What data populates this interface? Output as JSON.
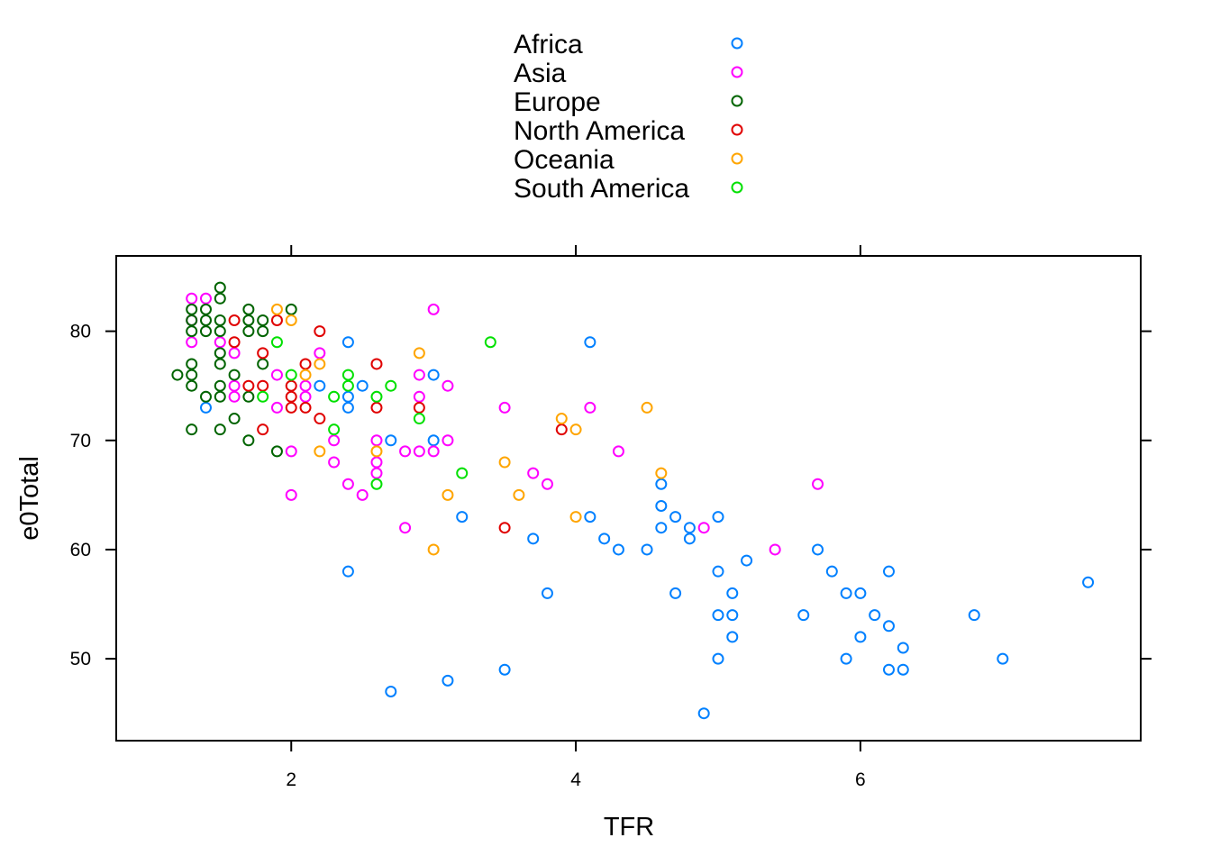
{
  "chart_data": {
    "type": "scatter",
    "xlabel": "TFR",
    "ylabel": "e0Total",
    "xlim": [
      0.77,
      7.97
    ],
    "ylim": [
      42.5,
      86.9
    ],
    "xticks": [
      2,
      4,
      6
    ],
    "yticks": [
      50,
      60,
      70,
      80
    ],
    "legend_position": "top",
    "series": [
      {
        "name": "Africa",
        "color": "#0080ff",
        "points": [
          [
            1.4,
            73
          ],
          [
            2.2,
            75
          ],
          [
            2.4,
            79
          ],
          [
            2.4,
            74
          ],
          [
            2.4,
            73
          ],
          [
            2.5,
            75
          ],
          [
            2.4,
            58
          ],
          [
            2.7,
            70
          ],
          [
            2.7,
            47
          ],
          [
            3.0,
            76
          ],
          [
            3.0,
            70
          ],
          [
            3.1,
            48
          ],
          [
            3.2,
            63
          ],
          [
            3.5,
            49
          ],
          [
            3.7,
            61
          ],
          [
            3.8,
            56
          ],
          [
            4.1,
            79
          ],
          [
            4.1,
            63
          ],
          [
            4.2,
            61
          ],
          [
            4.3,
            60
          ],
          [
            4.5,
            60
          ],
          [
            4.6,
            66
          ],
          [
            4.6,
            64
          ],
          [
            4.6,
            62
          ],
          [
            4.7,
            63
          ],
          [
            4.7,
            56
          ],
          [
            4.8,
            62
          ],
          [
            4.8,
            61
          ],
          [
            4.9,
            45
          ],
          [
            5.0,
            63
          ],
          [
            5.0,
            58
          ],
          [
            5.0,
            54
          ],
          [
            5.0,
            50
          ],
          [
            5.1,
            56
          ],
          [
            5.1,
            54
          ],
          [
            5.1,
            52
          ],
          [
            5.2,
            59
          ],
          [
            5.6,
            54
          ],
          [
            5.7,
            60
          ],
          [
            5.8,
            58
          ],
          [
            5.9,
            56
          ],
          [
            5.9,
            50
          ],
          [
            6.0,
            56
          ],
          [
            6.0,
            52
          ],
          [
            6.1,
            54
          ],
          [
            6.2,
            58
          ],
          [
            6.2,
            53
          ],
          [
            6.2,
            49
          ],
          [
            6.3,
            51
          ],
          [
            6.3,
            49
          ],
          [
            6.8,
            54
          ],
          [
            7.0,
            50
          ],
          [
            7.6,
            57
          ]
        ]
      },
      {
        "name": "Asia",
        "color": "#ff00ff",
        "points": [
          [
            1.3,
            83
          ],
          [
            1.3,
            81
          ],
          [
            1.3,
            79
          ],
          [
            1.4,
            83
          ],
          [
            1.5,
            79
          ],
          [
            1.6,
            78
          ],
          [
            1.6,
            75
          ],
          [
            1.6,
            74
          ],
          [
            1.9,
            76
          ],
          [
            1.9,
            73
          ],
          [
            2.0,
            69
          ],
          [
            2.0,
            65
          ],
          [
            2.1,
            75
          ],
          [
            2.1,
            74
          ],
          [
            2.2,
            78
          ],
          [
            2.3,
            70
          ],
          [
            2.3,
            68
          ],
          [
            2.4,
            66
          ],
          [
            2.5,
            65
          ],
          [
            2.6,
            70
          ],
          [
            2.6,
            68
          ],
          [
            2.6,
            67
          ],
          [
            2.8,
            69
          ],
          [
            2.8,
            62
          ],
          [
            2.9,
            76
          ],
          [
            2.9,
            74
          ],
          [
            2.9,
            69
          ],
          [
            3.0,
            82
          ],
          [
            3.0,
            69
          ],
          [
            3.1,
            75
          ],
          [
            3.1,
            70
          ],
          [
            3.5,
            73
          ],
          [
            3.7,
            67
          ],
          [
            3.8,
            66
          ],
          [
            4.1,
            73
          ],
          [
            4.3,
            69
          ],
          [
            4.9,
            62
          ],
          [
            5.4,
            60
          ],
          [
            5.7,
            66
          ]
        ]
      },
      {
        "name": "Europe",
        "color": "#006400",
        "points": [
          [
            1.2,
            76
          ],
          [
            1.3,
            82
          ],
          [
            1.3,
            81
          ],
          [
            1.3,
            80
          ],
          [
            1.3,
            77
          ],
          [
            1.3,
            76
          ],
          [
            1.3,
            75
          ],
          [
            1.3,
            71
          ],
          [
            1.4,
            82
          ],
          [
            1.4,
            81
          ],
          [
            1.4,
            80
          ],
          [
            1.4,
            74
          ],
          [
            1.5,
            84
          ],
          [
            1.5,
            83
          ],
          [
            1.5,
            81
          ],
          [
            1.5,
            80
          ],
          [
            1.5,
            78
          ],
          [
            1.5,
            77
          ],
          [
            1.5,
            75
          ],
          [
            1.5,
            74
          ],
          [
            1.5,
            71
          ],
          [
            1.6,
            76
          ],
          [
            1.6,
            72
          ],
          [
            1.7,
            82
          ],
          [
            1.7,
            81
          ],
          [
            1.7,
            80
          ],
          [
            1.7,
            74
          ],
          [
            1.7,
            70
          ],
          [
            1.8,
            81
          ],
          [
            1.8,
            80
          ],
          [
            1.8,
            77
          ],
          [
            1.9,
            69
          ],
          [
            2.0,
            82
          ]
        ]
      },
      {
        "name": "North America",
        "color": "#e00000",
        "points": [
          [
            1.6,
            81
          ],
          [
            1.6,
            79
          ],
          [
            1.7,
            75
          ],
          [
            1.8,
            78
          ],
          [
            1.8,
            75
          ],
          [
            1.8,
            71
          ],
          [
            1.9,
            81
          ],
          [
            2.0,
            75
          ],
          [
            2.0,
            74
          ],
          [
            2.0,
            73
          ],
          [
            2.1,
            77
          ],
          [
            2.1,
            73
          ],
          [
            2.2,
            80
          ],
          [
            2.2,
            72
          ],
          [
            2.6,
            77
          ],
          [
            2.6,
            73
          ],
          [
            2.9,
            73
          ],
          [
            3.5,
            62
          ],
          [
            3.9,
            71
          ]
        ]
      },
      {
        "name": "Oceania",
        "color": "#ffa500",
        "points": [
          [
            1.9,
            82
          ],
          [
            2.0,
            81
          ],
          [
            2.1,
            76
          ],
          [
            2.2,
            77
          ],
          [
            2.2,
            69
          ],
          [
            2.6,
            69
          ],
          [
            2.9,
            78
          ],
          [
            3.0,
            60
          ],
          [
            3.1,
            65
          ],
          [
            3.5,
            68
          ],
          [
            3.6,
            65
          ],
          [
            3.9,
            72
          ],
          [
            4.0,
            71
          ],
          [
            4.0,
            63
          ],
          [
            4.5,
            73
          ],
          [
            4.6,
            67
          ]
        ]
      },
      {
        "name": "South America",
        "color": "#00e000",
        "points": [
          [
            1.8,
            74
          ],
          [
            1.9,
            79
          ],
          [
            2.0,
            76
          ],
          [
            2.3,
            74
          ],
          [
            2.3,
            71
          ],
          [
            2.4,
            76
          ],
          [
            2.4,
            75
          ],
          [
            2.6,
            74
          ],
          [
            2.6,
            66
          ],
          [
            2.7,
            75
          ],
          [
            2.9,
            72
          ],
          [
            3.2,
            67
          ],
          [
            3.4,
            79
          ]
        ]
      }
    ]
  }
}
